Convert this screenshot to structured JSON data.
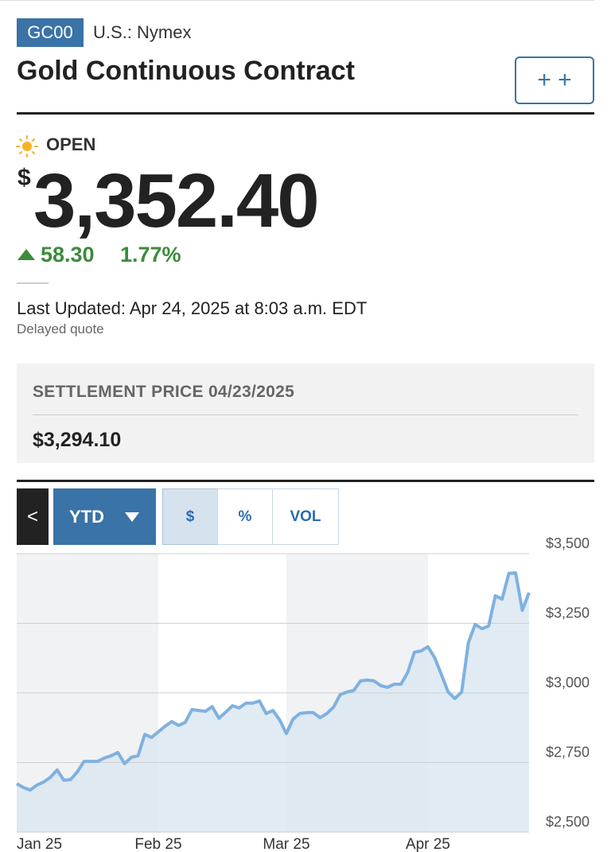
{
  "header": {
    "symbol": "GC00",
    "exchange": "U.S.: Nymex",
    "title": "Gold Continuous Contract",
    "button": "+ +"
  },
  "quote": {
    "status": "OPEN",
    "currency": "$",
    "price": "3,352.40",
    "change": "58.30",
    "change_percent": "1.77%",
    "last_updated": "Last Updated: Apr 24, 2025 at 8:03 a.m. EDT",
    "note": "Delayed quote"
  },
  "settlement": {
    "label": "SETTLEMENT PRICE 04/23/2025",
    "value": "$3,294.10"
  },
  "controls": {
    "back": "<",
    "range": "YTD",
    "tabs": [
      "$",
      "%",
      "VOL"
    ]
  },
  "chart_data": {
    "type": "line",
    "categories": [
      "Jan 25",
      null,
      null,
      null,
      null,
      null,
      null,
      null,
      null,
      null,
      null,
      null,
      null,
      null,
      null,
      null,
      null,
      null,
      null,
      null,
      null,
      "Feb 25",
      null,
      null,
      null,
      null,
      null,
      null,
      null,
      null,
      null,
      null,
      null,
      null,
      null,
      null,
      null,
      null,
      null,
      null,
      "Mar 25",
      null,
      null,
      null,
      null,
      null,
      null,
      null,
      null,
      null,
      null,
      null,
      null,
      null,
      null,
      null,
      null,
      null,
      null,
      null,
      null,
      "Apr 25",
      null,
      null,
      null,
      null,
      null,
      null,
      null,
      null,
      null,
      null,
      null,
      null,
      null,
      null,
      null
    ],
    "values": [
      2674,
      2660,
      2651,
      2669,
      2680,
      2697,
      2723,
      2686,
      2689,
      2717,
      2754,
      2754,
      2754,
      2766,
      2774,
      2786,
      2746,
      2769,
      2774,
      2851,
      2840,
      2860,
      2880,
      2897,
      2883,
      2894,
      2940,
      2937,
      2934,
      2951,
      2909,
      2931,
      2954,
      2946,
      2963,
      2963,
      2971,
      2926,
      2937,
      2903,
      2854,
      2906,
      2926,
      2929,
      2929,
      2911,
      2926,
      2949,
      2994,
      3003,
      3009,
      3043,
      3046,
      3043,
      3026,
      3020,
      3031,
      3031,
      3074,
      3146,
      3151,
      3166,
      3126,
      3066,
      3003,
      2980,
      3003,
      3180,
      3246,
      3231,
      3240,
      3349,
      3337,
      3429,
      3431,
      3297,
      3360
    ],
    "color": "#7fb1e0",
    "fill": "#dce7f1",
    "ylim": [
      2500,
      3500
    ],
    "yticks": [
      {
        "value": 2500,
        "label": "$2,500"
      },
      {
        "value": 2750,
        "label": "$2,750"
      },
      {
        "value": 3000,
        "label": "$3,000"
      },
      {
        "value": 3250,
        "label": "$3,250"
      },
      {
        "value": 3500,
        "label": "$3,500"
      }
    ],
    "grid": true
  }
}
